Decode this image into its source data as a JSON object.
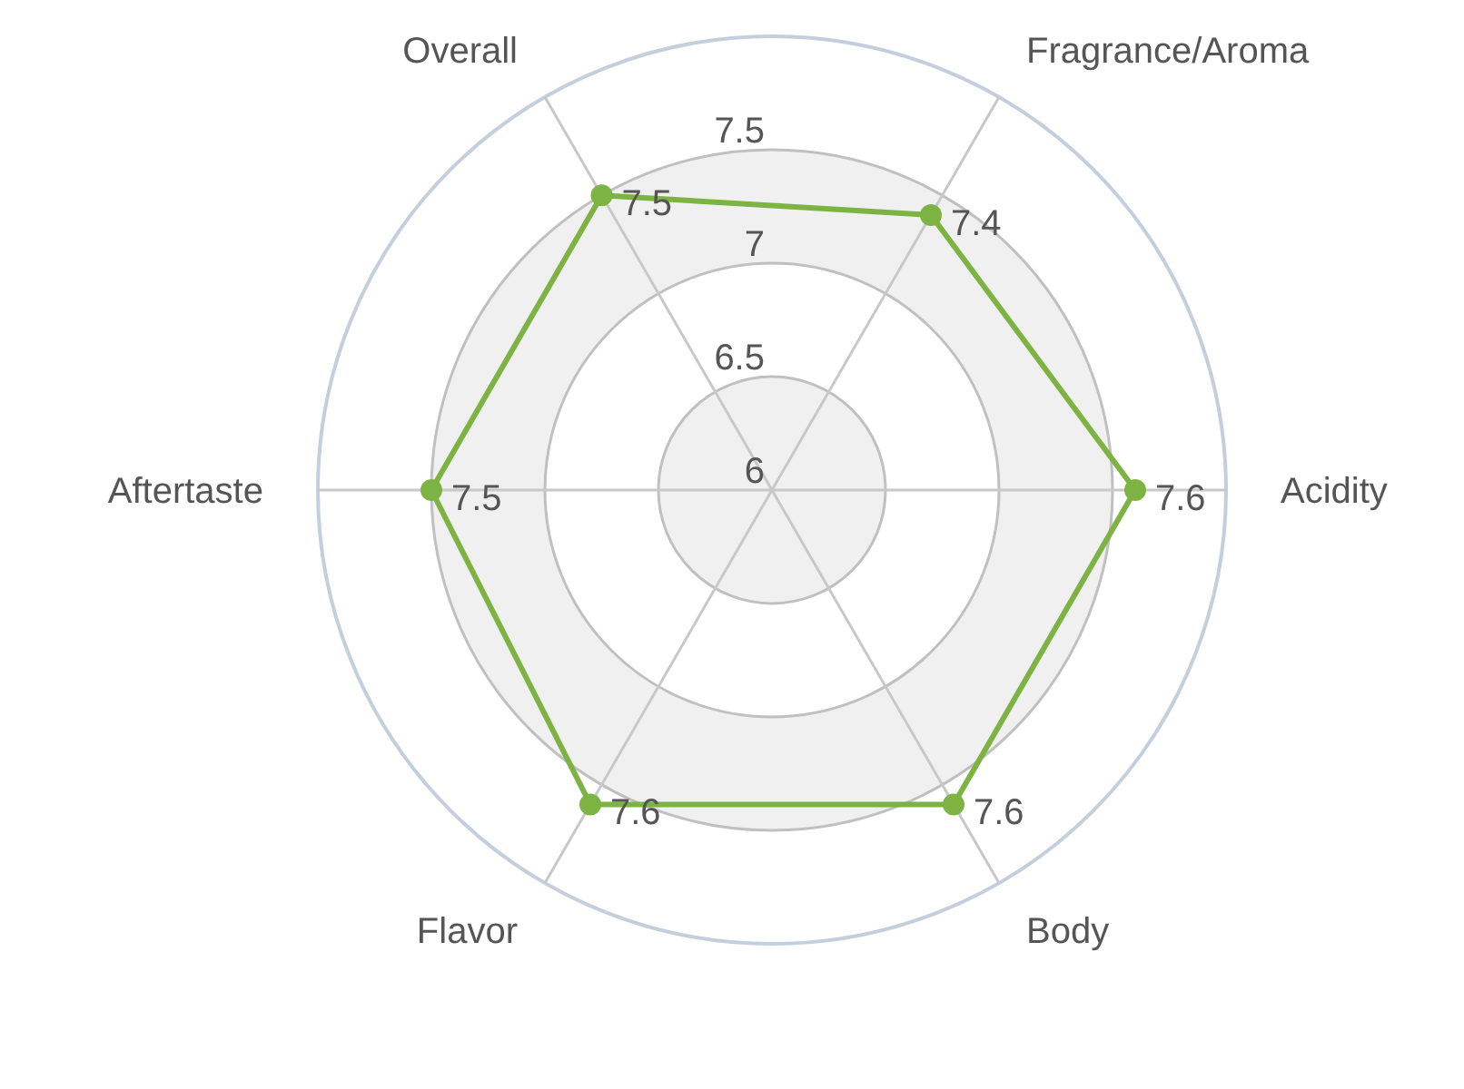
{
  "chart_data": {
    "type": "radar",
    "categories": [
      "Fragrance/Aroma",
      "Acidity",
      "Body",
      "Flavor",
      "Aftertaste",
      "Overall"
    ],
    "series": [
      {
        "color": "#7cb342",
        "values": [
          7.4,
          7.6,
          7.6,
          7.6,
          7.5,
          7.5
        ]
      }
    ],
    "ylim": [
      6,
      8
    ],
    "yticks": [
      6,
      6.5,
      7,
      7.5
    ],
    "data_labels": true,
    "marker": "circle",
    "grid": true
  }
}
